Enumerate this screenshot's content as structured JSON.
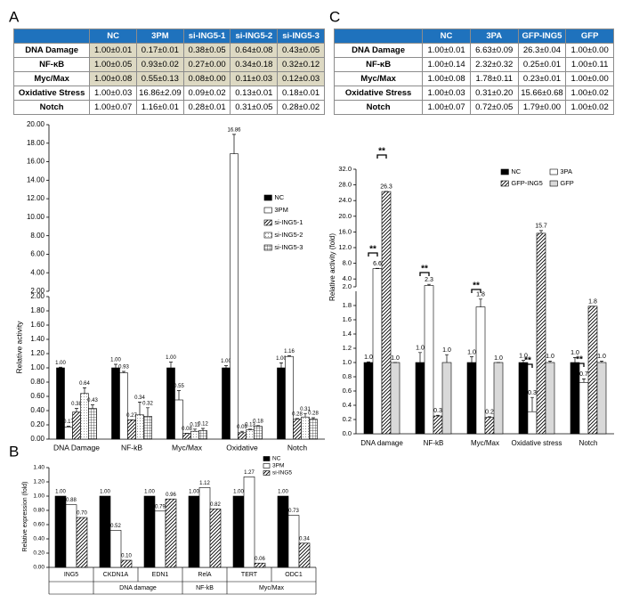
{
  "panel_labels": [
    "A",
    "B",
    "C"
  ],
  "table_a": {
    "columns": [
      "NC",
      "3PM",
      "si-ING5-1",
      "si-ING5-2",
      "si-ING5-3"
    ],
    "rows": [
      {
        "label": "DNA Damage",
        "cells": [
          "1.00±0.01",
          "0.17±0.01",
          "0.38±0.05",
          "0.64±0.08",
          "0.43±0.05"
        ]
      },
      {
        "label": "NF-κB",
        "cells": [
          "1.00±0.05",
          "0.93±0.02",
          "0.27±0.00",
          "0.34±0.18",
          "0.32±0.12"
        ]
      },
      {
        "label": "Myc/Max",
        "cells": [
          "1.00±0.08",
          "0.55±0.13",
          "0.08±0.00",
          "0.11±0.03",
          "0.12±0.03"
        ]
      },
      {
        "label": "Oxidative Stress",
        "cells": [
          "1.00±0.03",
          "16.86±2.09",
          "0.09±0.02",
          "0.13±0.01",
          "0.18±0.01"
        ]
      },
      {
        "label": "Notch",
        "cells": [
          "1.00±0.07",
          "1.16±0.01",
          "0.28±0.01",
          "0.31±0.05",
          "0.28±0.02"
        ]
      }
    ]
  },
  "table_c": {
    "columns": [
      "NC",
      "3PA",
      "GFP-ING5",
      "GFP"
    ],
    "rows": [
      {
        "label": "DNA Damage",
        "cells": [
          "1.00±0.01",
          "6.63±0.09",
          "26.3±0.04",
          "1.00±0.00"
        ]
      },
      {
        "label": "NF-κB",
        "cells": [
          "1.00±0.14",
          "2.32±0.32",
          "0.25±0.01",
          "1.00±0.11"
        ]
      },
      {
        "label": "Myc/Max",
        "cells": [
          "1.00±0.08",
          "1.78±0.11",
          "0.23±0.01",
          "1.00±0.00"
        ]
      },
      {
        "label": "Oxidative Stress",
        "cells": [
          "1.00±0.03",
          "0.31±0.20",
          "15.66±0.68",
          "1.00±0.02"
        ]
      },
      {
        "label": "Notch",
        "cells": [
          "1.00±0.07",
          "0.72±0.05",
          "1.79±0.00",
          "1.00±0.02"
        ]
      }
    ]
  },
  "chart_data": [
    {
      "type": "bar",
      "y_label": "Relative activity",
      "categories": [
        "DNA Damage",
        "NF-kB",
        "Myc/Max",
        "Oxidative",
        "Notch"
      ],
      "series": [
        {
          "name": "NC",
          "color": "#000000",
          "values": [
            1.0,
            1.0,
            1.0,
            1.0,
            1.0
          ],
          "errors": [
            0.01,
            0.05,
            0.08,
            0.03,
            0.07
          ],
          "value_labels": [
            "1.00",
            "1.00",
            "1.00",
            "1.00",
            "1.00"
          ]
        },
        {
          "name": "3PM",
          "color": "#ffffff",
          "values": [
            0.17,
            0.93,
            0.55,
            16.86,
            1.16
          ],
          "errors": [
            0.01,
            0.02,
            0.13,
            2.09,
            0.01
          ],
          "value_labels": [
            "0.17",
            "0.93",
            "0.55",
            "16.86",
            "1.16"
          ]
        },
        {
          "name": "si-ING5-1",
          "color": "#ffffff",
          "pattern": "diagonal",
          "values": [
            0.38,
            0.27,
            0.08,
            0.09,
            0.28
          ],
          "errors": [
            0.05,
            0.0,
            0.0,
            0.02,
            0.01
          ],
          "value_labels": [
            "0.38",
            "0.27",
            "0.08",
            "0.09",
            "0.28"
          ]
        },
        {
          "name": "si-ING5-2",
          "color": "#ffffff",
          "pattern": "dots",
          "values": [
            0.64,
            0.34,
            0.11,
            0.13,
            0.31
          ],
          "errors": [
            0.08,
            0.18,
            0.03,
            0.01,
            0.05
          ],
          "value_labels": [
            "0.64",
            "0.34",
            "0.11",
            "0.13",
            "0.31"
          ]
        },
        {
          "name": "si-ING5-3",
          "color": "#ffffff",
          "pattern": "grid",
          "values": [
            0.43,
            0.32,
            0.12,
            0.18,
            0.28
          ],
          "errors": [
            0.05,
            0.12,
            0.03,
            0.01,
            0.02
          ],
          "value_labels": [
            "0.43",
            "0.32",
            "0.12",
            "0.18",
            "0.28"
          ]
        }
      ],
      "ylim": [
        0,
        2
      ],
      "yticks": [
        {
          "value": 0,
          "label": "0.00"
        },
        {
          "value": 0.2,
          "label": "0.20"
        },
        {
          "value": 0.4,
          "label": "0.40"
        },
        {
          "value": 0.6,
          "label": "0.60"
        },
        {
          "value": 0.8,
          "label": "0.80"
        },
        {
          "value": 1,
          "label": "1.00"
        },
        {
          "value": 1.2,
          "label": "1.20"
        },
        {
          "value": 1.4,
          "label": "1.40"
        },
        {
          "value": 1.6,
          "label": "1.60"
        },
        {
          "value": 1.8,
          "label": "1.80"
        },
        {
          "value": 2,
          "label": "2.00"
        }
      ],
      "break_ylim": [
        2,
        20
      ],
      "break_yticks": [
        {
          "value": 2,
          "label": "2.00"
        },
        {
          "value": 4,
          "label": "4.00"
        },
        {
          "value": 6,
          "label": "6.00"
        },
        {
          "value": 8,
          "label": "8.00"
        },
        {
          "value": 10,
          "label": "10.00"
        },
        {
          "value": 12,
          "label": "12.00"
        },
        {
          "value": 14,
          "label": "14.00"
        },
        {
          "value": 16,
          "label": "16.00"
        },
        {
          "value": 18,
          "label": "18.00"
        },
        {
          "value": 20,
          "label": "20.00"
        }
      ],
      "annotations": [
        "**",
        "**",
        "**",
        "**",
        "**",
        "**",
        "**",
        "*",
        "**",
        "**",
        "**",
        "**",
        "**",
        "**"
      ]
    },
    {
      "type": "bar",
      "y_label": "Relative expression (fold)",
      "categories": [
        "ING5",
        "CKDN1A",
        "EDN1",
        "RelA",
        "TERT",
        "ODC1"
      ],
      "group_labels": [
        "DNA damage",
        "NF-kB",
        "Myc/Max"
      ],
      "series": [
        {
          "name": "NC",
          "color": "#000000",
          "values": [
            1.0,
            1.0,
            1.0,
            1.0,
            1.0,
            1.0
          ],
          "value_labels": [
            "1.00",
            "1.00",
            "1.00",
            "1.00",
            "1.00",
            "1.00"
          ]
        },
        {
          "name": "3PM",
          "color": "#ffffff",
          "values": [
            0.88,
            0.52,
            0.79,
            1.12,
            1.27,
            0.73
          ],
          "value_labels": [
            "0.88",
            "0.52",
            "0.79",
            "1.12",
            "1.27",
            "0.73"
          ]
        },
        {
          "name": "si-ING5",
          "color": "#ffffff",
          "pattern": "diagonal",
          "values": [
            0.7,
            0.1,
            0.96,
            0.82,
            0.06,
            0.34
          ],
          "value_labels": [
            "0.70",
            "0.10",
            "0.96",
            "0.82",
            "0.06",
            "0.34"
          ]
        }
      ],
      "ylim": [
        0,
        1.4
      ],
      "yticks": [
        {
          "value": 0,
          "label": "0.00"
        },
        {
          "value": 0.2,
          "label": "0.20"
        },
        {
          "value": 0.4,
          "label": "0.40"
        },
        {
          "value": 0.6,
          "label": "0.60"
        },
        {
          "value": 0.8,
          "label": "0.80"
        },
        {
          "value": 1,
          "label": "1.00"
        },
        {
          "value": 1.2,
          "label": "1.20"
        },
        {
          "value": 1.4,
          "label": "1.40"
        }
      ]
    },
    {
      "type": "bar",
      "y_label": "Relative activity (fold)",
      "categories": [
        "DNA damage",
        "NF-kB",
        "Myc/Max",
        "Oxidative stress",
        "Notch"
      ],
      "series": [
        {
          "name": "NC",
          "color": "#000000",
          "values": [
            1.0,
            1.0,
            1.0,
            1.0,
            1.0
          ],
          "errors": [
            0.01,
            0.14,
            0.08,
            0.03,
            0.07
          ],
          "value_labels": [
            "1.0",
            "1.0",
            "1.0",
            "1.0",
            "1.0"
          ]
        },
        {
          "name": "3PA",
          "color": "#ffffff",
          "values": [
            6.63,
            2.32,
            1.78,
            0.31,
            0.72
          ],
          "errors": [
            0.09,
            0.32,
            0.11,
            0.2,
            0.05
          ],
          "value_labels": [
            "6.6",
            "2.3",
            "1.8",
            "0.3",
            "0.7"
          ]
        },
        {
          "name": "GFP-ING5",
          "color": "#ffffff",
          "pattern": "diagonal",
          "values": [
            26.3,
            0.25,
            0.23,
            15.66,
            1.79
          ],
          "errors": [
            0.04,
            0.01,
            0.01,
            0.68,
            0.0
          ],
          "value_labels": [
            "26.3",
            "0.3",
            "0.2",
            "15.7",
            "1.8"
          ]
        },
        {
          "name": "GFP",
          "color": "#d9d9d9",
          "values": [
            1.0,
            1.0,
            1.0,
            1.0,
            1.0
          ],
          "errors": [
            0.0,
            0.11,
            0.0,
            0.02,
            0.02
          ],
          "value_labels": [
            "1.0",
            "1.0",
            "1.0",
            "1.0",
            "1.0"
          ]
        }
      ],
      "ylim": [
        0,
        2
      ],
      "yticks": [
        {
          "value": 0,
          "label": "0.0"
        },
        0.2,
        0.4,
        0.6,
        0.8,
        {
          "value": 1,
          "label": "1.0"
        },
        1.2,
        1.4,
        1.6,
        1.8
      ],
      "break_ylim": [
        2,
        32
      ],
      "break_yticks": [
        {
          "value": 2,
          "label": "2.0"
        },
        {
          "value": 4,
          "label": "4.0"
        },
        {
          "value": 8,
          "label": "8.0"
        },
        {
          "value": 12,
          "label": "12.0"
        },
        {
          "value": 16,
          "label": "16.0"
        },
        {
          "value": 20,
          "label": "20.0"
        },
        {
          "value": 24,
          "label": "24.0"
        },
        {
          "value": 28,
          "label": "28.0"
        },
        {
          "value": 32,
          "label": "32.0"
        }
      ],
      "annotations": [
        "**",
        "**",
        "**",
        "**",
        "**",
        "**"
      ]
    }
  ]
}
